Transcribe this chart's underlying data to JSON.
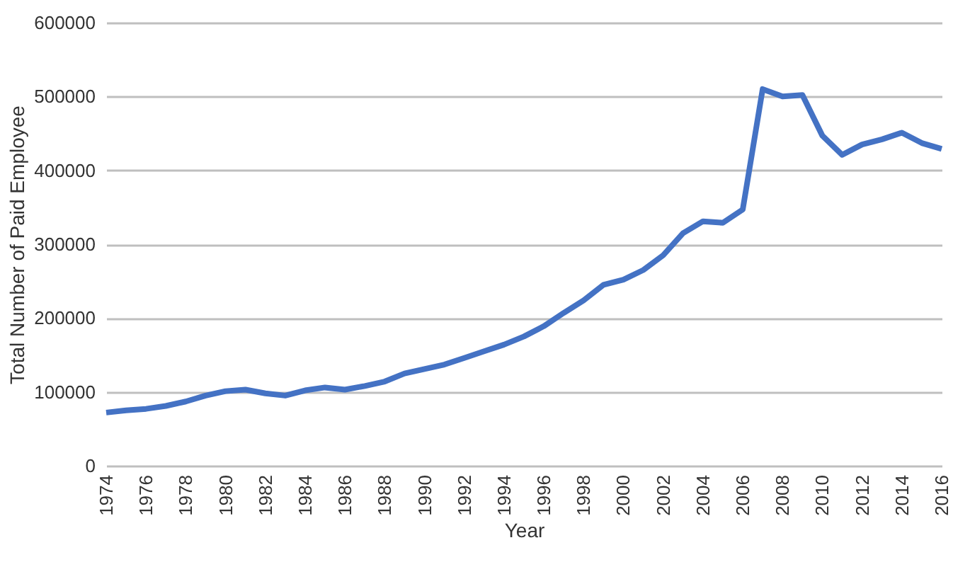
{
  "chart_data": {
    "type": "line",
    "xlabel": "Year",
    "ylabel": "Total Number of Paid Employee",
    "x": [
      1974,
      1975,
      1976,
      1977,
      1978,
      1979,
      1980,
      1981,
      1982,
      1983,
      1984,
      1985,
      1986,
      1987,
      1988,
      1989,
      1990,
      1991,
      1992,
      1993,
      1994,
      1995,
      1996,
      1997,
      1998,
      1999,
      2000,
      2001,
      2002,
      2003,
      2004,
      2005,
      2006,
      2007,
      2008,
      2009,
      2010,
      2011,
      2012,
      2013,
      2014,
      2015,
      2016
    ],
    "series": [
      {
        "color": "#4472c4",
        "values": [
          72000,
          75000,
          77000,
          81000,
          87000,
          95000,
          101000,
          103000,
          98000,
          95000,
          102000,
          106000,
          103000,
          108000,
          114000,
          125000,
          131000,
          137000,
          146000,
          155000,
          164000,
          175000,
          189000,
          207000,
          224000,
          245000,
          252000,
          265000,
          285000,
          315000,
          331000,
          329000,
          347000,
          510000,
          500000,
          502000,
          447000,
          421000,
          435000,
          442000,
          451000,
          437000,
          429000
        ]
      }
    ],
    "xlim": [
      1974,
      2016
    ],
    "xticks": [
      1974,
      1976,
      1978,
      1980,
      1982,
      1984,
      1986,
      1988,
      1990,
      1992,
      1994,
      1996,
      1998,
      2000,
      2002,
      2004,
      2006,
      2008,
      2010,
      2012,
      2014,
      2016
    ],
    "ylim": [
      0,
      600000
    ],
    "yticks": [
      0,
      100000,
      200000,
      300000,
      400000,
      500000,
      600000
    ],
    "grid": "y",
    "legend": false,
    "marker": "none",
    "line_style": "solid"
  }
}
